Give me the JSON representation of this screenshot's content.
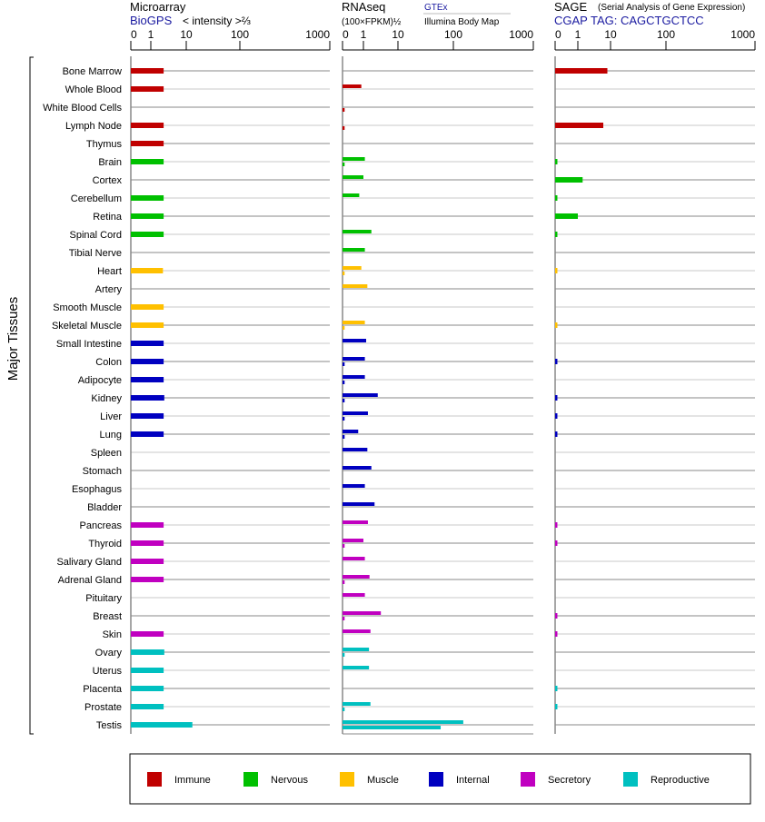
{
  "chart_data": {
    "type": "bar",
    "ylabel": "Major Tissues",
    "groups": [
      {
        "name": "Immune",
        "color": "#c00000"
      },
      {
        "name": "Nervous",
        "color": "#00c000"
      },
      {
        "name": "Muscle",
        "color": "#ffc000"
      },
      {
        "name": "Internal",
        "color": "#0000c0"
      },
      {
        "name": "Secretory",
        "color": "#c000c0"
      },
      {
        "name": "Reproductive",
        "color": "#00c0c0"
      }
    ],
    "panels": [
      {
        "title": "Microarray",
        "source": "BioGPS",
        "subtitle": "< intensity >⅔",
        "ticks": [
          0,
          1,
          10,
          100,
          1000
        ],
        "key": "microarray"
      },
      {
        "title": "RNAseq",
        "subtitle": "(100×FPKM)½",
        "series_labels": [
          "GTEx",
          "Illumina Body Map"
        ],
        "ticks": [
          0,
          1,
          10,
          100,
          1000
        ],
        "key": "rnaseq"
      },
      {
        "title": "SAGE",
        "title_note": "(Serial Analysis of Gene Expression)",
        "source": "CGAP TAG: CAGCTGCTCC",
        "ticks": [
          0,
          1,
          10,
          100,
          1000
        ],
        "key": "sage"
      }
    ],
    "tissues": [
      {
        "name": "Bone Marrow",
        "group": 0,
        "microarray": 2.3,
        "gtex": null,
        "illumina": null,
        "sage": 8
      },
      {
        "name": "Whole Blood",
        "group": 0,
        "microarray": 2.3,
        "gtex": 0.9,
        "illumina": null,
        "sage": null
      },
      {
        "name": "White Blood Cells",
        "group": 0,
        "microarray": null,
        "gtex": null,
        "illumina": 0.1,
        "sage": null
      },
      {
        "name": "Lymph Node",
        "group": 0,
        "microarray": 2.3,
        "gtex": null,
        "illumina": 0.1,
        "sage": 6
      },
      {
        "name": "Thymus",
        "group": 0,
        "microarray": 2.3,
        "gtex": null,
        "illumina": null,
        "sage": null
      },
      {
        "name": "Brain",
        "group": 1,
        "microarray": 2.3,
        "gtex": 1.1,
        "illumina": 0.1,
        "sage": 0.1
      },
      {
        "name": "Cortex",
        "group": 1,
        "microarray": null,
        "gtex": 1.0,
        "illumina": null,
        "sage": 1.4
      },
      {
        "name": "Cerebellum",
        "group": 1,
        "microarray": 2.3,
        "gtex": 0.8,
        "illumina": null,
        "sage": 0.1
      },
      {
        "name": "Retina",
        "group": 1,
        "microarray": 2.3,
        "gtex": null,
        "illumina": null,
        "sage": 1.0
      },
      {
        "name": "Spinal Cord",
        "group": 1,
        "microarray": 2.3,
        "gtex": 1.7,
        "illumina": null,
        "sage": 0.1
      },
      {
        "name": "Tibial Nerve",
        "group": 1,
        "microarray": null,
        "gtex": 1.1,
        "illumina": null,
        "sage": null
      },
      {
        "name": "Heart",
        "group": 2,
        "microarray": 2.2,
        "gtex": 0.9,
        "illumina": 0.1,
        "sage": 0.1
      },
      {
        "name": "Artery",
        "group": 2,
        "microarray": null,
        "gtex": 1.3,
        "illumina": null,
        "sage": null
      },
      {
        "name": "Smooth Muscle",
        "group": 2,
        "microarray": 2.3,
        "gtex": null,
        "illumina": null,
        "sage": null
      },
      {
        "name": "Skeletal Muscle",
        "group": 2,
        "microarray": 2.3,
        "gtex": 1.1,
        "illumina": 0.1,
        "sage": 0.1
      },
      {
        "name": "Small Intestine",
        "group": 3,
        "microarray": 2.3,
        "gtex": 1.2,
        "illumina": null,
        "sage": null
      },
      {
        "name": "Colon",
        "group": 3,
        "microarray": 2.3,
        "gtex": 1.1,
        "illumina": 0.1,
        "sage": 0.1
      },
      {
        "name": "Adipocyte",
        "group": 3,
        "microarray": 2.3,
        "gtex": 1.1,
        "illumina": 0.1,
        "sage": null
      },
      {
        "name": "Kidney",
        "group": 3,
        "microarray": 2.4,
        "gtex": 2.6,
        "illumina": 0.1,
        "sage": 0.1
      },
      {
        "name": "Liver",
        "group": 3,
        "microarray": 2.3,
        "gtex": 1.35,
        "illumina": 0.1,
        "sage": 0.1
      },
      {
        "name": "Lung",
        "group": 3,
        "microarray": 2.3,
        "gtex": 0.75,
        "illumina": 0.1,
        "sage": 0.1
      },
      {
        "name": "Spleen",
        "group": 3,
        "microarray": null,
        "gtex": 1.3,
        "illumina": null,
        "sage": null
      },
      {
        "name": "Stomach",
        "group": 3,
        "microarray": null,
        "gtex": 1.7,
        "illumina": null,
        "sage": null
      },
      {
        "name": "Esophagus",
        "group": 3,
        "microarray": null,
        "gtex": 1.1,
        "illumina": null,
        "sage": null
      },
      {
        "name": "Bladder",
        "group": 3,
        "microarray": null,
        "gtex": 2.1,
        "illumina": null,
        "sage": null
      },
      {
        "name": "Pancreas",
        "group": 4,
        "microarray": 2.3,
        "gtex": 1.35,
        "illumina": null,
        "sage": 0.1
      },
      {
        "name": "Thyroid",
        "group": 4,
        "microarray": 2.3,
        "gtex": 1.0,
        "illumina": 0.1,
        "sage": 0.1
      },
      {
        "name": "Salivary Gland",
        "group": 4,
        "microarray": 2.3,
        "gtex": 1.1,
        "illumina": null,
        "sage": null
      },
      {
        "name": "Adrenal Gland",
        "group": 4,
        "microarray": 2.3,
        "gtex": 1.5,
        "illumina": 0.1,
        "sage": null
      },
      {
        "name": "Pituitary",
        "group": 4,
        "microarray": null,
        "gtex": 1.1,
        "illumina": null,
        "sage": null
      },
      {
        "name": "Breast",
        "group": 4,
        "microarray": null,
        "gtex": 3.2,
        "illumina": 0.1,
        "sage": 0.1
      },
      {
        "name": "Skin",
        "group": 4,
        "microarray": 2.3,
        "gtex": 1.6,
        "illumina": null,
        "sage": 0.1
      },
      {
        "name": "Ovary",
        "group": 5,
        "microarray": 2.4,
        "gtex": 1.45,
        "illumina": 0.1,
        "sage": null
      },
      {
        "name": "Uterus",
        "group": 5,
        "microarray": 2.3,
        "gtex": 1.45,
        "illumina": null,
        "sage": null
      },
      {
        "name": "Placenta",
        "group": 5,
        "microarray": 2.3,
        "gtex": null,
        "illumina": null,
        "sage": 0.1
      },
      {
        "name": "Prostate",
        "group": 5,
        "microarray": 2.3,
        "gtex": 1.6,
        "illumina": 0.1,
        "sage": 0.1
      },
      {
        "name": "Testis",
        "group": 5,
        "microarray": 13,
        "gtex": 133,
        "illumina": 59,
        "sage": null
      }
    ]
  }
}
